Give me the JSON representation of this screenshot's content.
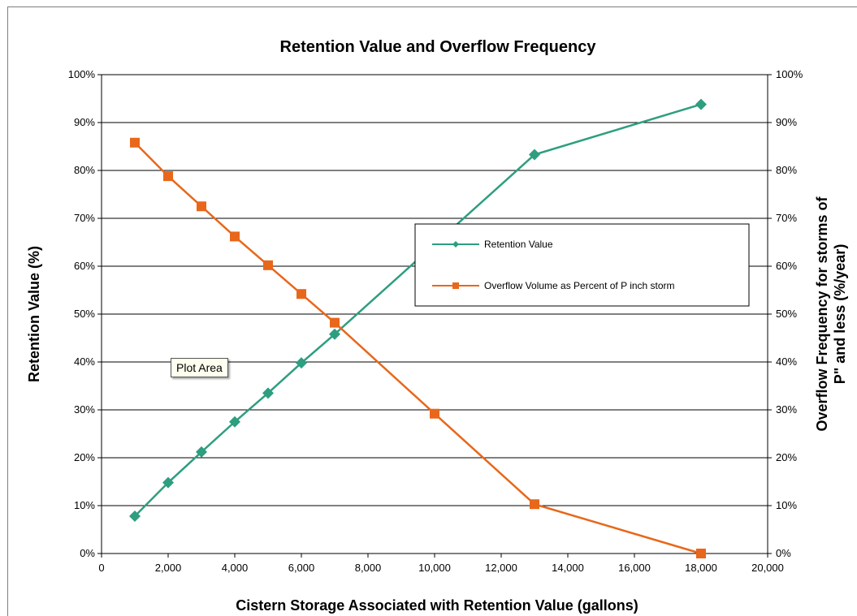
{
  "chart_data": {
    "type": "line",
    "title": "Retention Value and Overflow Frequency",
    "xlabel": "Cistern Storage Associated with Retention Value (gallons)",
    "ylabel": "Retention Value (%)",
    "y2label_line1": "Overflow Frequency for storms of",
    "y2label_line2": "P\" and less (%/year)",
    "xlim": [
      0,
      20000
    ],
    "ylim": [
      0,
      100
    ],
    "y2lim": [
      0,
      100
    ],
    "x_ticks": [
      "0",
      "2,000",
      "4,000",
      "6,000",
      "8,000",
      "10,000",
      "12,000",
      "14,000",
      "16,000",
      "18,000",
      "20,000"
    ],
    "y_ticks": [
      "0%",
      "10%",
      "20%",
      "30%",
      "40%",
      "50%",
      "60%",
      "70%",
      "80%",
      "90%",
      "100%"
    ],
    "y2_ticks": [
      "0%",
      "10%",
      "20%",
      "30%",
      "40%",
      "50%",
      "60%",
      "70%",
      "80%",
      "90%",
      "100%"
    ],
    "grid": "horizontal",
    "legend_position": "center-right",
    "series": [
      {
        "name": "Retention Value",
        "color": "#2e9e80",
        "marker": "diamond",
        "axis": "left",
        "x": [
          1000,
          2000,
          3000,
          4000,
          5000,
          6000,
          7000,
          13000,
          18000
        ],
        "values": [
          7.8,
          14.8,
          21.2,
          27.5,
          33.5,
          39.8,
          45.8,
          83.3,
          93.8
        ]
      },
      {
        "name": "Overflow Volume as Percent of P inch storm",
        "color": "#e8671a",
        "marker": "square",
        "axis": "right",
        "x": [
          1000,
          2000,
          3000,
          4000,
          5000,
          6000,
          7000,
          10000,
          13000,
          18000
        ],
        "values": [
          85.8,
          78.8,
          72.5,
          66.2,
          60.2,
          54.2,
          48.2,
          29.2,
          10.3,
          0
        ]
      }
    ]
  },
  "annotation": "Plot Area"
}
